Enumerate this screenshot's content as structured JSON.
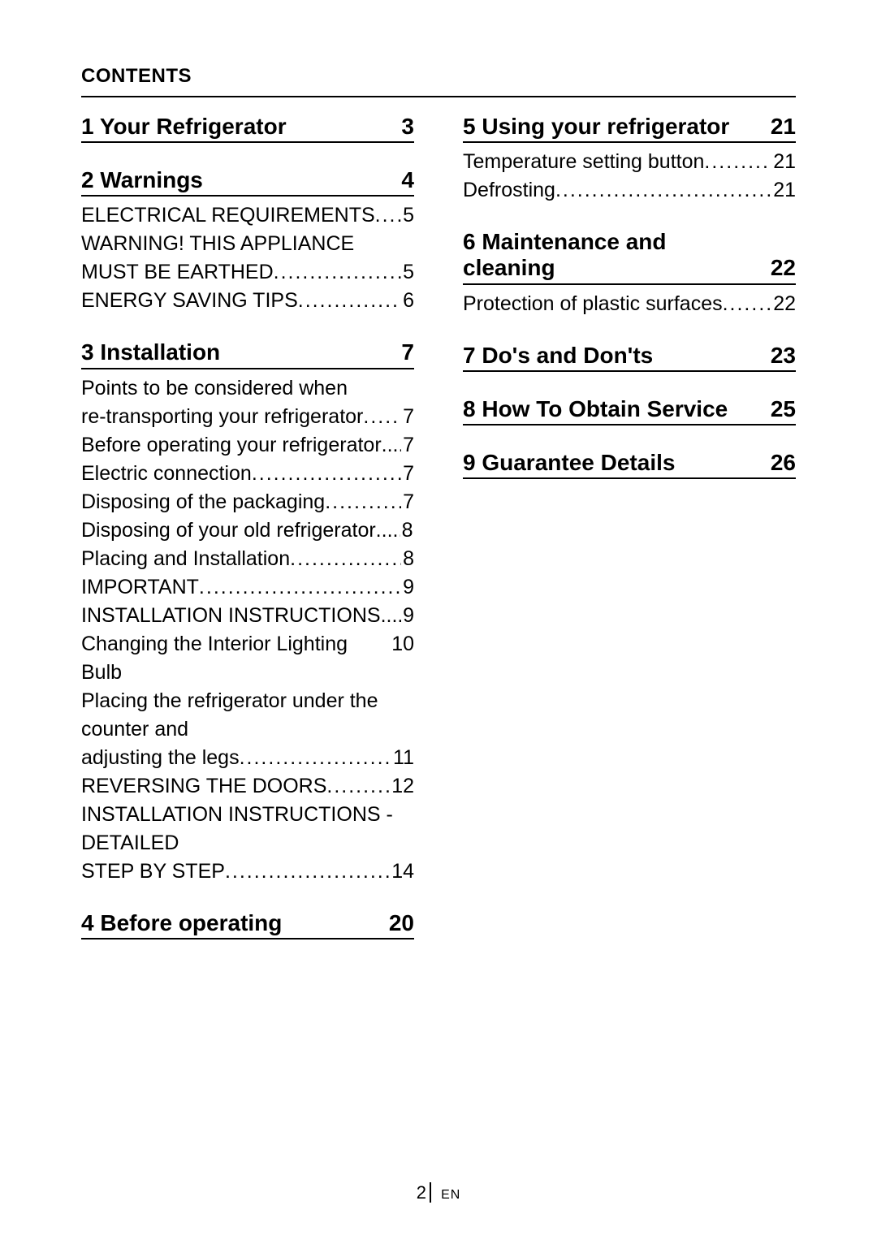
{
  "title": "CONTENTS",
  "footer": {
    "page": "2",
    "lang": "EN"
  },
  "left": [
    {
      "num": "1",
      "title": "Your Refrigerator",
      "page": "3",
      "entries": []
    },
    {
      "num": "2",
      "title": " Warnings",
      "page": "4",
      "entries": [
        {
          "text": "ELECTRICAL REQUIREMENTS",
          "page": "5"
        },
        {
          "text": "WARNING! THIS APPLIANCE MUST BE EARTHED",
          "page": "5",
          "wrap": true
        },
        {
          "text": "ENERGY SAVING TIPS",
          "page": "6"
        }
      ]
    },
    {
      "num": "3",
      "title": "  Installation",
      "page": "7",
      "entries": [
        {
          "text": "Points to be considered when re-transporting your refrigerator",
          "page": "7",
          "wrap": true
        },
        {
          "text": "Before operating your refrigerator",
          "page": "7",
          "tight": true
        },
        {
          "text": "Electric connection",
          "page": "7"
        },
        {
          "text": "Disposing of the packaging",
          "page": "7"
        },
        {
          "text": "Disposing of your old refrigerator",
          "page": "8",
          "tight": true
        },
        {
          "text": "Placing and Installation",
          "page": "8"
        },
        {
          "text": "IMPORTANT",
          "page": "9"
        },
        {
          "text": "INSTALLATION INSTRUCTIONS",
          "page": "9",
          "tight": true
        },
        {
          "text": "Changing the Interior Lighting Bulb",
          "page": "10",
          "nodots": true
        },
        {
          "text": "Placing the refrigerator under the counter and adjusting the legs",
          "page": "11",
          "wrap": true
        },
        {
          "text": "REVERSING THE DOORS",
          "page": "12"
        },
        {
          "text": "INSTALLATION INSTRUCTIONS - DETAILED STEP BY STEP",
          "page": "14",
          "wrap": true
        }
      ]
    },
    {
      "num": "4",
      "title": " Before operating",
      "page": "20",
      "entries": []
    }
  ],
  "right": [
    {
      "num": "5",
      "title": "Using your refrigerator",
      "page": "21",
      "entries": [
        {
          "text": "Temperature setting button",
          "page": "21"
        },
        {
          "text": "Defrosting",
          "page": "21"
        }
      ]
    },
    {
      "num": "6",
      "title": " Maintenance and cleaning",
      "page": "22",
      "entries": [
        {
          "text": "Protection of plastic surfaces",
          "page": "22"
        }
      ]
    },
    {
      "num": "7",
      "title": " Do's and Don'ts",
      "page": "23",
      "entries": []
    },
    {
      "num": "8",
      "title": "How To Obtain Service",
      "page": "25",
      "entries": []
    },
    {
      "num": "9",
      "title": "Guarantee Details",
      "page": "26",
      "entries": []
    }
  ]
}
